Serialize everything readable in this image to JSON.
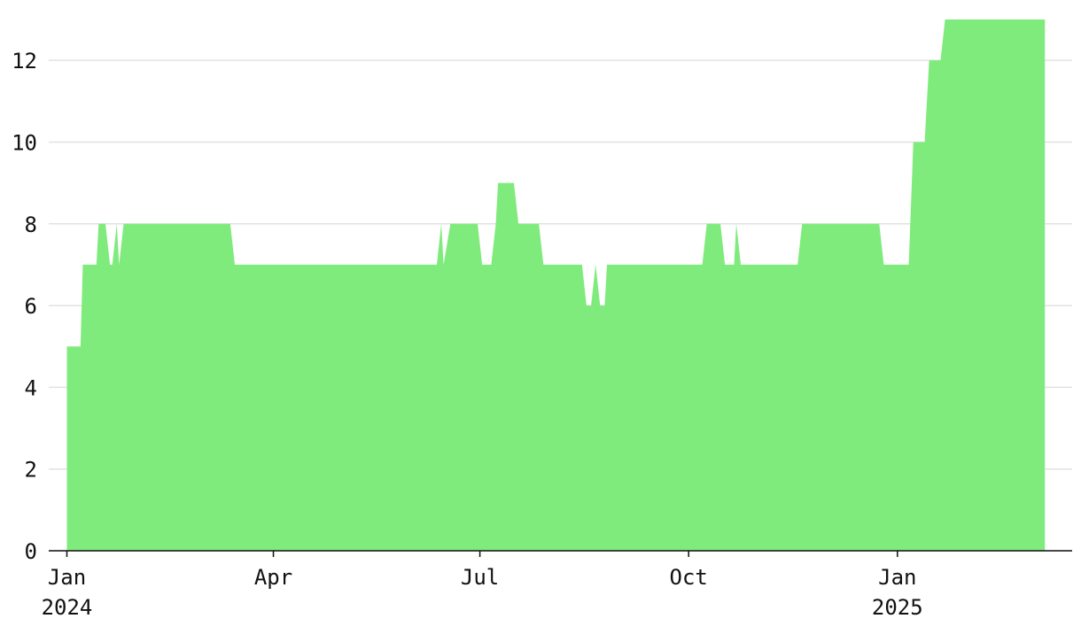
{
  "chart_data": {
    "type": "area",
    "color": "#80eb7d",
    "grid": true,
    "x": [
      "2024-01-01",
      "2024-01-07",
      "2024-01-08",
      "2024-01-14",
      "2024-01-15",
      "2024-01-18",
      "2024-01-20",
      "2024-01-21",
      "2024-01-23",
      "2024-01-24",
      "2024-01-26",
      "2024-03-13",
      "2024-03-15",
      "2024-06-12",
      "2024-06-14",
      "2024-06-15",
      "2024-06-18",
      "2024-06-30",
      "2024-07-02",
      "2024-07-06",
      "2024-07-08",
      "2024-07-09",
      "2024-07-16",
      "2024-07-18",
      "2024-07-27",
      "2024-07-29",
      "2024-08-15",
      "2024-08-17",
      "2024-08-19",
      "2024-08-21",
      "2024-08-23",
      "2024-08-25",
      "2024-08-26",
      "2024-10-07",
      "2024-10-09",
      "2024-10-15",
      "2024-10-17",
      "2024-10-21",
      "2024-10-22",
      "2024-10-24",
      "2024-11-18",
      "2024-11-20",
      "2024-12-24",
      "2024-12-26",
      "2025-01-06",
      "2025-01-08",
      "2025-01-13",
      "2025-01-15",
      "2025-01-20",
      "2025-01-22",
      "2025-03-07"
    ],
    "values": [
      5,
      5,
      7,
      7,
      8,
      8,
      7,
      7,
      8,
      7,
      8,
      8,
      7,
      7,
      8,
      7,
      8,
      8,
      7,
      7,
      8,
      9,
      9,
      8,
      8,
      7,
      7,
      6,
      6,
      7,
      6,
      6,
      7,
      7,
      8,
      8,
      7,
      7,
      8,
      7,
      7,
      8,
      8,
      7,
      7,
      10,
      10,
      12,
      12,
      13,
      13
    ],
    "xlim": [
      "2023-12-24",
      "2025-03-19"
    ],
    "xticks": [
      {
        "value": "2024-01-01",
        "label": "Jan\n2024"
      },
      {
        "value": "2024-04-01",
        "label": "Apr"
      },
      {
        "value": "2024-07-01",
        "label": "Jul"
      },
      {
        "value": "2024-10-01",
        "label": "Oct"
      },
      {
        "value": "2025-01-01",
        "label": "Jan\n2025"
      }
    ],
    "ylim": [
      0,
      13
    ],
    "yticks": [
      0,
      2,
      4,
      6,
      8,
      10,
      12
    ]
  }
}
